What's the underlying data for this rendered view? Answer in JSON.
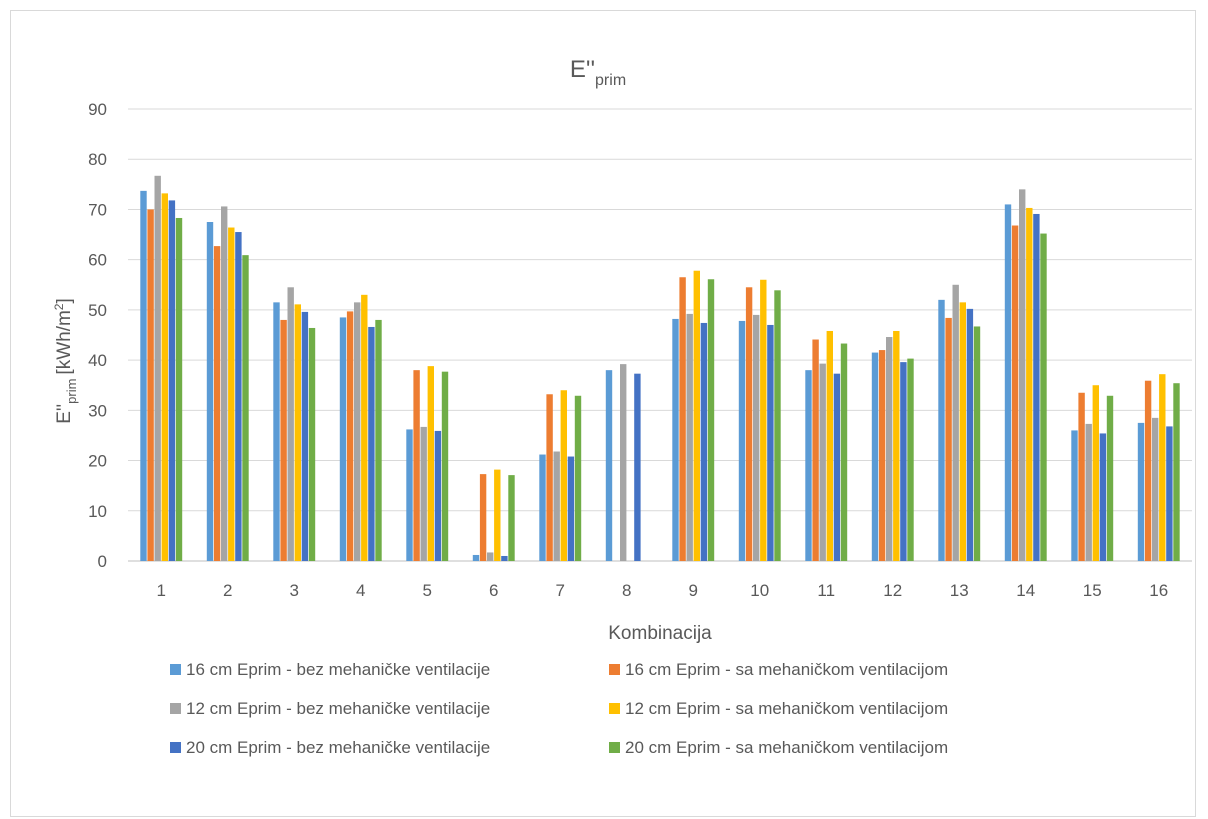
{
  "chart_data": {
    "type": "bar",
    "title": "E''",
    "title_sub": "prim",
    "xlabel": "Kombinacija",
    "ylabel_main": "E''",
    "ylabel_sub": "prim",
    "ylabel_unit": "[kWh/m",
    "ylabel_sup": "2",
    "ylabel_end": "]",
    "ylim": [
      0,
      90
    ],
    "yticks": [
      0,
      10,
      20,
      30,
      40,
      50,
      60,
      70,
      80,
      90
    ],
    "grid": true,
    "legend_position": "bottom",
    "categories": [
      "1",
      "2",
      "3",
      "4",
      "5",
      "6",
      "7",
      "8",
      "9",
      "10",
      "11",
      "12",
      "13",
      "14",
      "15",
      "16"
    ],
    "series": [
      {
        "name": "16 cm Eprim - bez mehaničke ventilacije",
        "color": "#5B9BD5",
        "values": [
          73.7,
          67.5,
          51.5,
          48.5,
          26.2,
          1.2,
          21.2,
          38.0,
          48.2,
          47.8,
          38.0,
          41.5,
          52.0,
          71.0,
          26.0,
          27.5
        ]
      },
      {
        "name": "16 cm Eprim - sa mehaničkom ventilacijom",
        "color": "#ED7D31",
        "values": [
          70.0,
          62.7,
          48.0,
          49.7,
          38.0,
          17.3,
          33.2,
          0,
          56.5,
          54.5,
          44.1,
          42.0,
          48.4,
          66.8,
          33.5,
          35.9
        ]
      },
      {
        "name": "12 cm Eprim - bez mehaničke ventilacije",
        "color": "#A5A5A5",
        "values": [
          76.7,
          70.6,
          54.5,
          51.5,
          26.7,
          1.7,
          21.8,
          39.2,
          49.2,
          49.0,
          39.3,
          44.6,
          55.0,
          74.0,
          27.3,
          28.5
        ]
      },
      {
        "name": "12 cm Eprim - sa mehaničkom ventilacijom",
        "color": "#FFC000",
        "values": [
          73.2,
          66.4,
          51.1,
          53.0,
          38.8,
          18.2,
          34.0,
          0,
          57.8,
          56.0,
          45.8,
          45.8,
          51.5,
          70.3,
          35.0,
          37.2
        ]
      },
      {
        "name": "20 cm Eprim - bez mehaničke ventilacije",
        "color": "#4472C4",
        "values": [
          71.8,
          65.5,
          49.6,
          46.6,
          25.9,
          1.0,
          20.8,
          37.3,
          47.4,
          47.0,
          37.3,
          39.6,
          50.2,
          69.1,
          25.4,
          26.8
        ]
      },
      {
        "name": "20 cm Eprim - sa mehaničkom ventilacijom",
        "color": "#70AD47",
        "values": [
          68.3,
          60.9,
          46.4,
          48.0,
          37.7,
          17.1,
          32.9,
          0,
          56.1,
          53.9,
          43.3,
          40.3,
          46.7,
          65.2,
          32.9,
          35.4
        ]
      }
    ]
  }
}
